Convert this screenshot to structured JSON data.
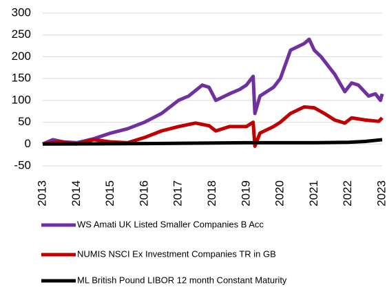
{
  "chart_data": {
    "type": "line",
    "xlim": [
      2013,
      2023
    ],
    "xticks": [
      2013,
      2014,
      2015,
      2016,
      2017,
      2018,
      2019,
      2020,
      2021,
      2022,
      2023
    ],
    "ylim": [
      -50,
      300
    ],
    "yticks": [
      -50,
      0,
      50,
      100,
      150,
      200,
      250,
      300
    ],
    "grid": true,
    "series": [
      {
        "name": "WS Amati UK Listed Smaller Companies B Acc",
        "color": "#7030a0",
        "x": [
          2013,
          2013.3,
          2013.6,
          2014,
          2014.5,
          2015,
          2015.5,
          2016,
          2016.5,
          2017,
          2017.3,
          2017.7,
          2017.9,
          2018.1,
          2018.5,
          2018.8,
          2019,
          2019.2,
          2019.25,
          2019.4,
          2019.8,
          2020,
          2020.3,
          2020.7,
          2020.85,
          2021,
          2021.2,
          2021.6,
          2021.9,
          2022.1,
          2022.3,
          2022.6,
          2022.8,
          2022.95,
          2023
        ],
        "values": [
          0,
          10,
          5,
          3,
          12,
          25,
          35,
          50,
          70,
          100,
          110,
          135,
          130,
          100,
          115,
          125,
          135,
          155,
          70,
          110,
          130,
          150,
          215,
          230,
          240,
          215,
          200,
          160,
          120,
          140,
          135,
          110,
          115,
          100,
          115
        ]
      },
      {
        "name": "NUMIS NSCI Ex Investment Companies TR in GB",
        "color": "#c00000",
        "x": [
          2013,
          2013.5,
          2014,
          2014.5,
          2015,
          2015.5,
          2016,
          2016.5,
          2017,
          2017.5,
          2017.9,
          2018.1,
          2018.5,
          2019,
          2019.2,
          2019.25,
          2019.4,
          2019.8,
          2020,
          2020.3,
          2020.7,
          2021,
          2021.3,
          2021.6,
          2021.9,
          2022.1,
          2022.5,
          2022.9,
          2023
        ],
        "values": [
          0,
          5,
          0,
          10,
          5,
          3,
          15,
          30,
          40,
          48,
          42,
          30,
          40,
          40,
          50,
          -5,
          25,
          40,
          50,
          70,
          85,
          83,
          70,
          55,
          48,
          60,
          55,
          52,
          60
        ]
      },
      {
        "name": "ML British Pound LIBOR 12 month Constant Maturity",
        "color": "#000000",
        "x": [
          2013,
          2016,
          2019,
          2021,
          2022,
          2022.5,
          2023
        ],
        "values": [
          0,
          1,
          3,
          3,
          4,
          6,
          10
        ]
      }
    ]
  }
}
